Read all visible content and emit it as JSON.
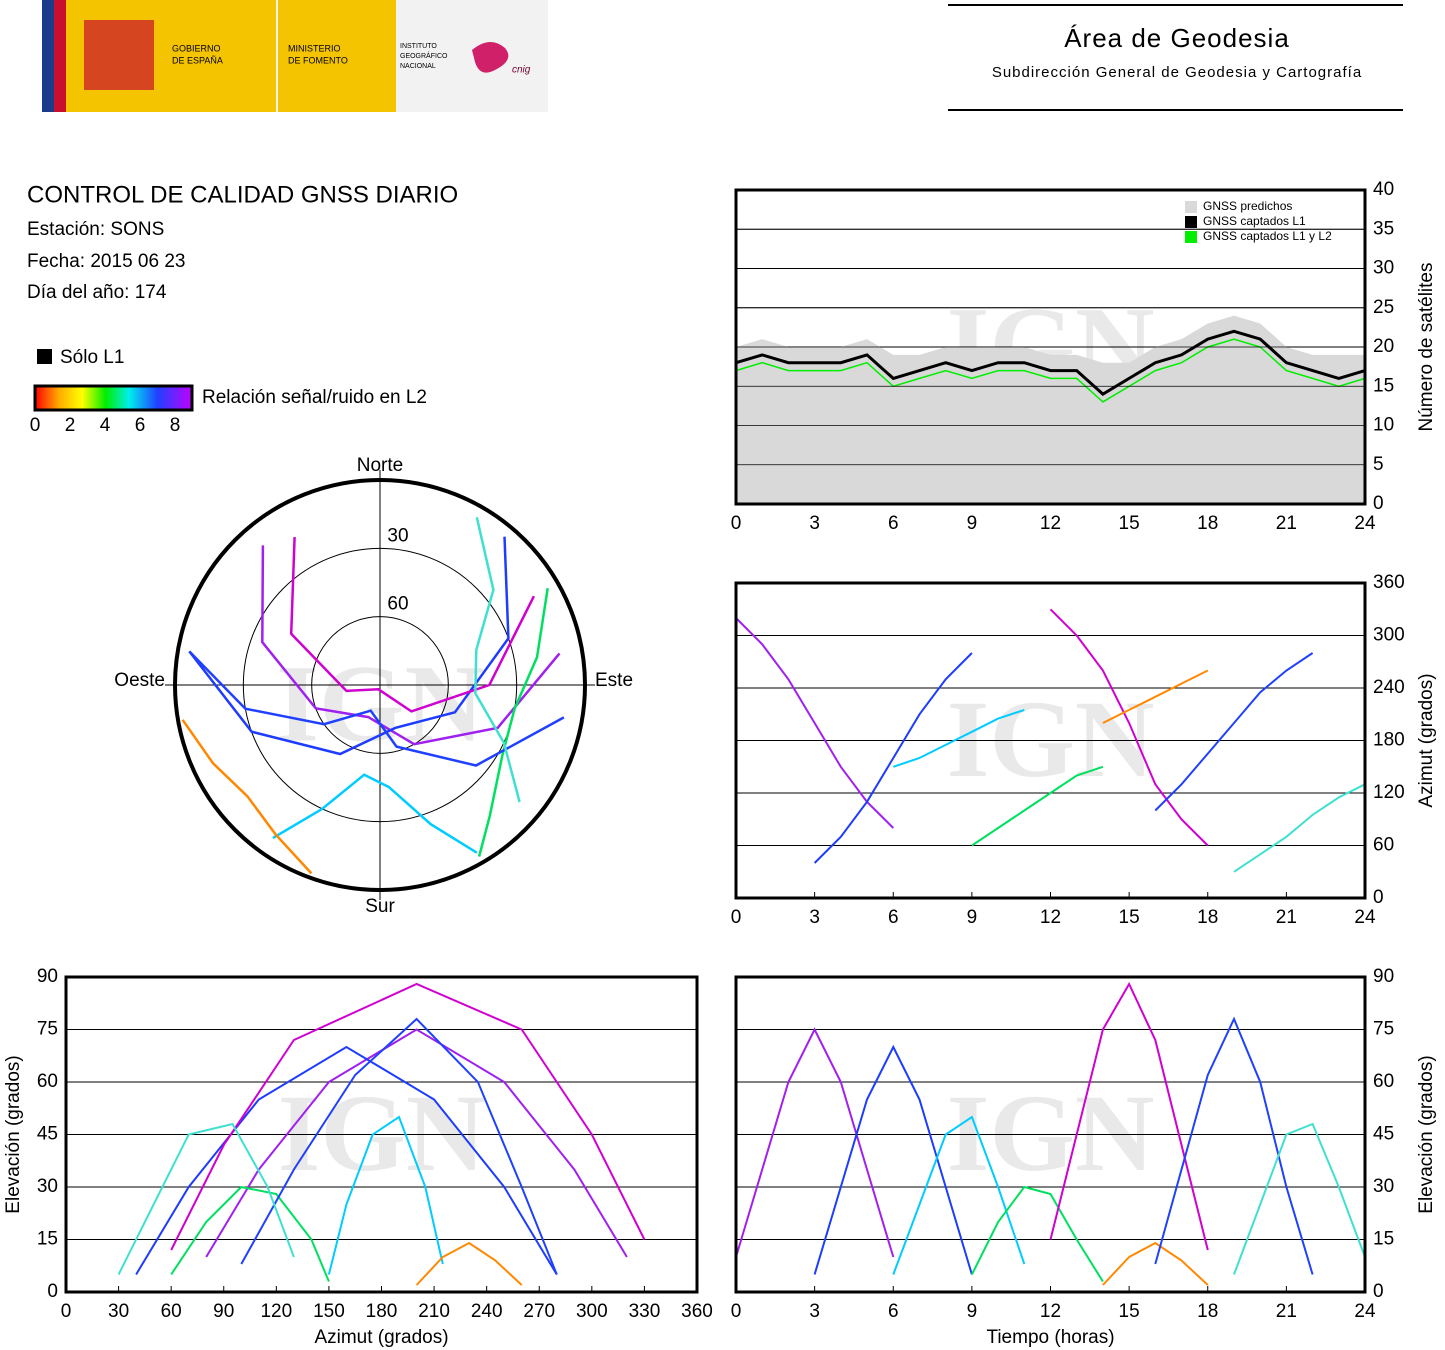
{
  "header": {
    "gov": [
      "GOBIERNO",
      "DE ESPAÑA"
    ],
    "ministry": [
      "MINISTERIO",
      "DE FOMENTO"
    ],
    "institute": [
      "INSTITUTO",
      "GEOGRÁFICO",
      "NACIONAL"
    ],
    "cnig": "cnig",
    "title": "Área de Geodesia",
    "subtitle": "Subdirección General de Geodesia y Cartografía"
  },
  "info": {
    "title": "CONTROL DE CALIDAD GNSS DIARIO",
    "lines": [
      "Estación: SONS",
      "Fecha: 2015 06 23",
      "Día del año: 174"
    ]
  },
  "legend": {
    "l1_only": "Sólo L1",
    "snr_label": "Relación señal/ruido en L2",
    "snr_ticks": [
      0,
      2,
      4,
      6,
      8
    ]
  },
  "chart_data": [
    {
      "type": "polar",
      "watermark": "IGN",
      "directions": {
        "north": "Norte",
        "south": "Sur",
        "east": "Este",
        "west": "Oeste"
      },
      "rticks": [
        30,
        60
      ],
      "series": [
        {
          "color": "#a020f0",
          "t": [
            0,
            1,
            2,
            3,
            4,
            5,
            6
          ],
          "az": [
            320,
            290,
            250,
            200,
            150,
            110,
            80
          ],
          "el": [
            10,
            35,
            60,
            75,
            60,
            35,
            10
          ]
        },
        {
          "color": "#1e3cff",
          "t": [
            3,
            4,
            5,
            6,
            7,
            8,
            9
          ],
          "az": [
            40,
            70,
            110,
            160,
            210,
            250,
            280
          ],
          "el": [
            5,
            30,
            55,
            70,
            55,
            30,
            5
          ]
        },
        {
          "color": "#00ccff",
          "t": [
            6,
            7,
            8,
            9,
            10,
            11
          ],
          "az": [
            150,
            160,
            175,
            190,
            205,
            215
          ],
          "el": [
            5,
            25,
            45,
            50,
            30,
            8
          ]
        },
        {
          "color": "#00e060",
          "t": [
            9,
            10,
            11,
            12,
            13,
            14
          ],
          "az": [
            60,
            80,
            100,
            120,
            140,
            150
          ],
          "el": [
            5,
            20,
            30,
            28,
            15,
            3
          ]
        },
        {
          "color": "#d000d0",
          "t": [
            12,
            13,
            14,
            15,
            16,
            17,
            18
          ],
          "az": [
            330,
            300,
            260,
            200,
            130,
            90,
            60
          ],
          "el": [
            15,
            45,
            75,
            88,
            72,
            42,
            12
          ]
        },
        {
          "color": "#ff8800",
          "t": [
            14,
            15,
            16,
            17,
            18
          ],
          "az": [
            200,
            215,
            230,
            245,
            260
          ],
          "el": [
            2,
            10,
            14,
            9,
            2
          ]
        },
        {
          "color": "#2040ff",
          "t": [
            16,
            17,
            18,
            19,
            20,
            21,
            22
          ],
          "az": [
            100,
            130,
            165,
            200,
            235,
            260,
            280
          ],
          "el": [
            8,
            35,
            62,
            78,
            60,
            30,
            5
          ]
        },
        {
          "color": "#40e0d0",
          "t": [
            19,
            20,
            21,
            22,
            23,
            24
          ],
          "az": [
            30,
            50,
            70,
            95,
            115,
            130
          ],
          "el": [
            5,
            25,
            45,
            48,
            30,
            10
          ]
        }
      ]
    },
    {
      "type": "area",
      "watermark": "IGN",
      "ylabel": "Número de satélites",
      "xlim": [
        0,
        24
      ],
      "xticks": [
        0,
        3,
        6,
        9,
        12,
        15,
        18,
        21,
        24
      ],
      "ylim": [
        0,
        40
      ],
      "yticks": [
        0,
        5,
        10,
        15,
        20,
        25,
        30,
        35,
        40
      ],
      "grid": true,
      "legend": "upper right",
      "x": [
        0,
        1,
        2,
        3,
        4,
        5,
        6,
        7,
        8,
        9,
        10,
        11,
        12,
        13,
        14,
        15,
        16,
        17,
        18,
        19,
        20,
        21,
        22,
        23,
        24
      ],
      "series": [
        {
          "name": "GNSS predichos",
          "color": "#d9d9d9",
          "values": [
            20,
            21,
            20,
            20,
            20,
            21,
            19,
            19,
            20,
            20,
            20,
            20,
            19,
            19,
            18,
            18,
            20,
            21,
            23,
            24,
            23,
            20,
            19,
            19,
            19
          ]
        },
        {
          "name": "GNSS captados L1",
          "color": "#000000",
          "values": [
            18,
            19,
            18,
            18,
            18,
            19,
            16,
            17,
            18,
            17,
            18,
            18,
            17,
            17,
            14,
            16,
            18,
            19,
            21,
            22,
            21,
            18,
            17,
            16,
            17
          ]
        },
        {
          "name": "GNSS captados L1 y L2",
          "color": "#00ee00",
          "values": [
            17,
            18,
            17,
            17,
            17,
            18,
            15,
            16,
            17,
            16,
            17,
            17,
            16,
            16,
            13,
            15,
            17,
            18,
            20,
            21,
            20,
            17,
            16,
            15,
            16
          ]
        }
      ]
    },
    {
      "type": "scatter",
      "watermark": "IGN",
      "ylabel": "Azimut (grados)",
      "xlim": [
        0,
        24
      ],
      "xticks": [
        0,
        3,
        6,
        9,
        12,
        15,
        18,
        21,
        24
      ],
      "ylim": [
        0,
        360
      ],
      "yticks": [
        0,
        60,
        120,
        180,
        240,
        300,
        360
      ],
      "grid": true
    },
    {
      "type": "scatter",
      "watermark": "IGN",
      "xlabel": "Azimut (grados)",
      "ylabel": "Elevación (grados)",
      "xlim": [
        0,
        360
      ],
      "xticks": [
        0,
        30,
        60,
        90,
        120,
        150,
        180,
        210,
        240,
        270,
        300,
        330,
        360
      ],
      "ylim": [
        0,
        90
      ],
      "yticks": [
        0,
        15,
        30,
        45,
        60,
        75,
        90
      ],
      "grid": true
    },
    {
      "type": "scatter",
      "watermark": "IGN",
      "xlabel": "Tiempo (horas)",
      "ylabel": "Elevación (grados)",
      "xlim": [
        0,
        24
      ],
      "xticks": [
        0,
        3,
        6,
        9,
        12,
        15,
        18,
        21,
        24
      ],
      "ylim": [
        0,
        90
      ],
      "yticks": [
        0,
        15,
        30,
        45,
        60,
        75,
        90
      ],
      "grid": true
    }
  ]
}
